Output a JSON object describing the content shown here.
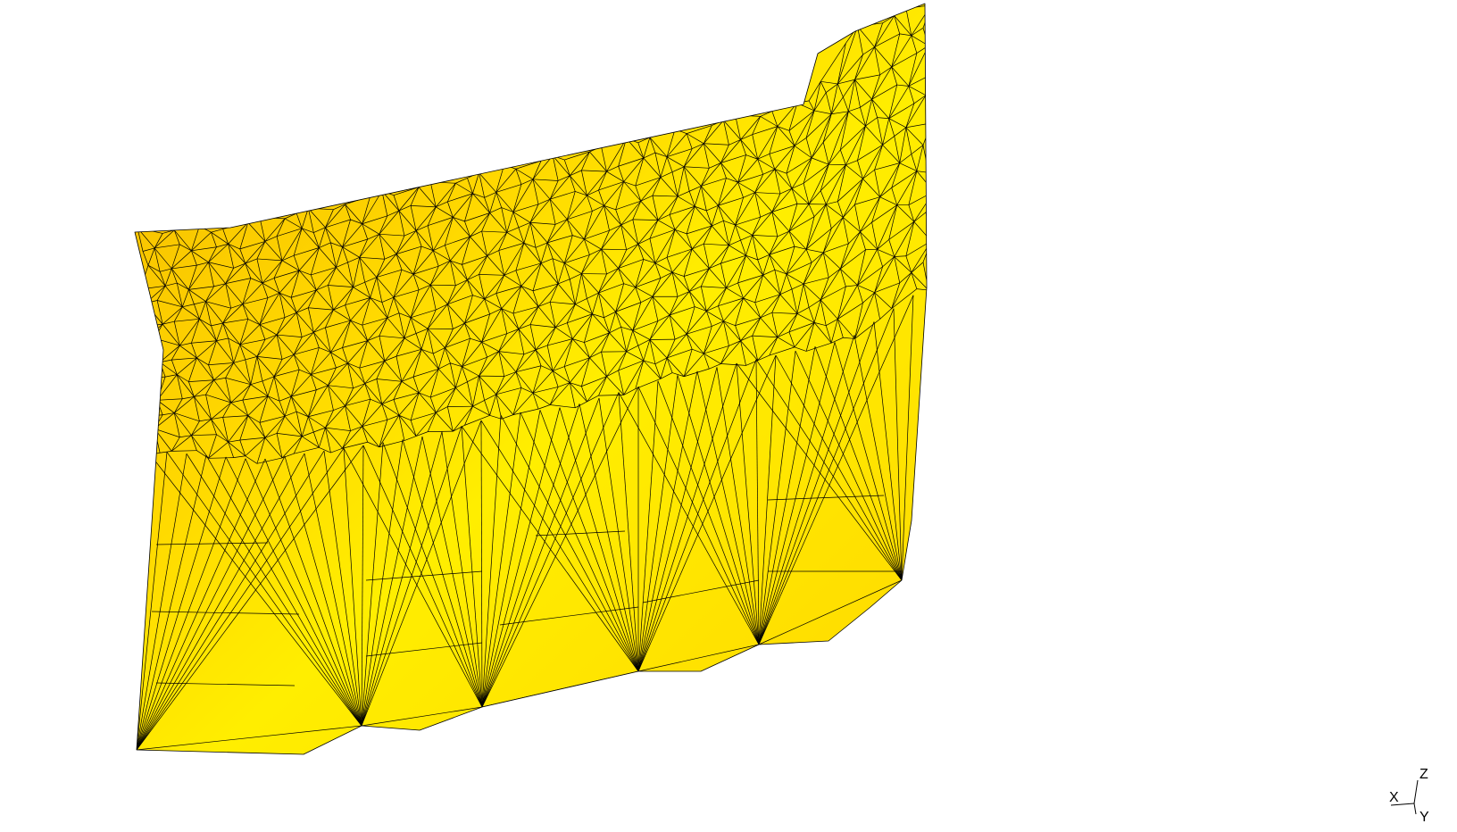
{
  "viewer": {
    "background": "#ffffff",
    "mesh_fill_light": "#ffee00",
    "mesh_fill_mid": "#ffd800",
    "mesh_fill_dark": "#f5b800",
    "edge_color": "#000000"
  },
  "axes": {
    "z_label": "Z",
    "x_label": "X",
    "y_label": "Y"
  }
}
